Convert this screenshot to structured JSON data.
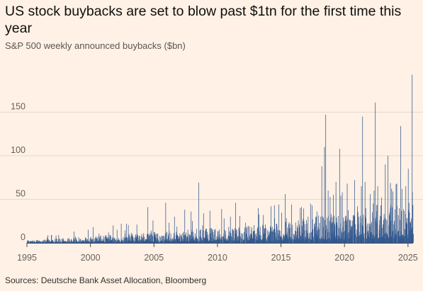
{
  "title": "US stock buybacks are set to blow past $1tn for the first time this year",
  "subtitle": "S&P 500 weekly announced buybacks ($bn)",
  "source": "Sources: Deutsche Bank Asset Allocation, Bloomberg",
  "colors": {
    "background": "#fff1e5",
    "bars": "#33598f",
    "grid": "#e3d8cd",
    "baseline": "#4d4845"
  },
  "chart_data": {
    "type": "bar",
    "title": "US stock buybacks are set to blow past $1tn for the first time this year",
    "subtitle": "S&P 500 weekly announced buybacks ($bn)",
    "xlabel": "",
    "ylabel": "",
    "x_ticks": [
      1995,
      2000,
      2005,
      2010,
      2015,
      2020,
      2025
    ],
    "y_ticks": [
      0,
      50,
      100,
      150
    ],
    "xlim": [
      1995,
      2025.4
    ],
    "ylim": [
      0,
      195
    ],
    "grid": true,
    "note": "Peaks (year, $bn) approximate the largest visible weekly spikes",
    "peaks": [
      [
        1996.9,
        9
      ],
      [
        1998.7,
        13
      ],
      [
        1999.8,
        15
      ],
      [
        2000.2,
        18
      ],
      [
        2001.4,
        12
      ],
      [
        2002.4,
        22
      ],
      [
        2004.5,
        41
      ],
      [
        2005.9,
        46
      ],
      [
        2006.6,
        30
      ],
      [
        2007.4,
        38
      ],
      [
        2007.9,
        36
      ],
      [
        2008.0,
        25
      ],
      [
        2008.5,
        69
      ],
      [
        2008.8,
        20
      ],
      [
        2009.8,
        16
      ],
      [
        2010.5,
        28
      ],
      [
        2011.0,
        30
      ],
      [
        2011.4,
        46
      ],
      [
        2012.2,
        23
      ],
      [
        2013.2,
        40
      ],
      [
        2013.6,
        32
      ],
      [
        2014.2,
        42
      ],
      [
        2014.8,
        44
      ],
      [
        2015.3,
        56
      ],
      [
        2015.8,
        44
      ],
      [
        2016.5,
        40
      ],
      [
        2017.3,
        45
      ],
      [
        2017.8,
        36
      ],
      [
        2018.2,
        88
      ],
      [
        2018.4,
        110
      ],
      [
        2018.5,
        147
      ],
      [
        2018.7,
        60
      ],
      [
        2019.1,
        55
      ],
      [
        2019.3,
        70
      ],
      [
        2019.6,
        108
      ],
      [
        2019.8,
        58
      ],
      [
        2020.2,
        68
      ],
      [
        2020.4,
        25
      ],
      [
        2021.0,
        42
      ],
      [
        2021.3,
        65
      ],
      [
        2021.4,
        145
      ],
      [
        2021.6,
        70
      ],
      [
        2022.0,
        56
      ],
      [
        2022.3,
        60
      ],
      [
        2022.4,
        161
      ],
      [
        2022.6,
        65
      ],
      [
        2022.9,
        52
      ],
      [
        2023.2,
        90
      ],
      [
        2023.4,
        100
      ],
      [
        2023.7,
        62
      ],
      [
        2024.1,
        68
      ],
      [
        2024.4,
        134
      ],
      [
        2024.5,
        62
      ],
      [
        2024.8,
        65
      ],
      [
        2025.0,
        85
      ],
      [
        2025.3,
        193
      ]
    ]
  }
}
